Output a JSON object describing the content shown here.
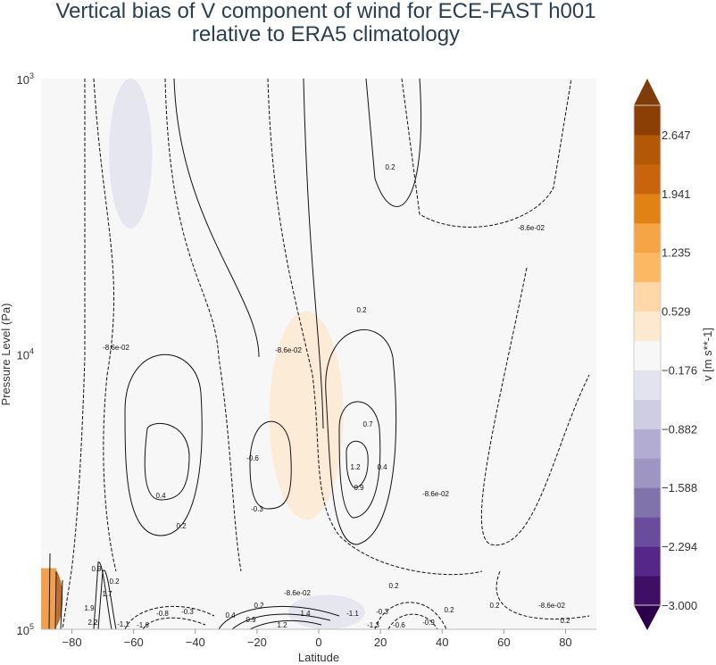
{
  "chart_data": {
    "type": "contour",
    "title": "Vertical bias of V component of wind for ECE-FAST h001 relative to ERA5 climatology",
    "title_lines": [
      "Vertical bias of V component of wind for ECE-FAST h001",
      "relative to ERA5 climatology"
    ],
    "xlabel": "Latitude",
    "ylabel": "Pressure Level (Pa)",
    "xlim": [
      -90,
      90
    ],
    "ylim": [
      100000,
      1000
    ],
    "yscale": "log",
    "x_ticks": [
      "-80",
      "-60",
      "-40",
      "-20",
      "0",
      "20",
      "40",
      "60",
      "80"
    ],
    "y_ticks": [
      {
        "base": "10",
        "exp": "3"
      },
      {
        "base": "10",
        "exp": "4"
      },
      {
        "base": "10",
        "exp": "5"
      }
    ],
    "colorbar": {
      "label": "v [m s**-1]",
      "min": -3.0,
      "max": 3.0,
      "ticks": [
        "2.647",
        "1.941",
        "1.235",
        "0.529",
        "-0.176",
        "-0.882",
        "-1.588",
        "-2.294",
        "-3.000"
      ],
      "extend": "both",
      "colors": [
        "#2d004b",
        "#3f0f66",
        "#542788",
        "#6a4c9c",
        "#8073ac",
        "#9e95c2",
        "#b2abd2",
        "#cfcde4",
        "#e3e3f0",
        "#f7f7f7",
        "#fde9d0",
        "#fed8a6",
        "#fdb863",
        "#f5a446",
        "#e08214",
        "#c8650c",
        "#b35806",
        "#8c3f05",
        "#7f3b08"
      ]
    },
    "filled_regions": [
      {
        "desc_value": "-0.35",
        "lat": [
          -68,
          -54
        ],
        "p": [
          1000,
          3500
        ]
      },
      {
        "desc_value": "0.5",
        "lat": [
          -16,
          8
        ],
        "p": [
          7000,
          40000
        ]
      },
      {
        "desc_value": "2.5",
        "lat": [
          -90,
          -83
        ],
        "p": [
          60000,
          100000
        ]
      },
      {
        "desc_value": "-0.35",
        "lat": [
          -10,
          15
        ],
        "p": [
          75000,
          100000
        ]
      }
    ],
    "contour_labels": [
      "0.2",
      "-8.6e-02",
      "0.2",
      "-8.6e-02",
      "-8.6e-02",
      "0.4",
      "0.2",
      "-0.6",
      "-0.3",
      "0.7",
      "1.2",
      "0.9",
      "0.4",
      "-8.6e-02",
      "0.2",
      "-8.6e-02",
      "0.2",
      "-8.6e-02",
      "0.2",
      "0.2",
      "-0.3",
      "-0.6",
      "-0.9",
      "-1.1",
      "-1.3",
      "0.4",
      "0.9",
      "1.2",
      "1.4",
      "0.2",
      "-0.3",
      "-0.8",
      "-1.6",
      "-1.1",
      "1.9",
      "2.2",
      "1.7",
      "0.9",
      "0.2"
    ]
  }
}
